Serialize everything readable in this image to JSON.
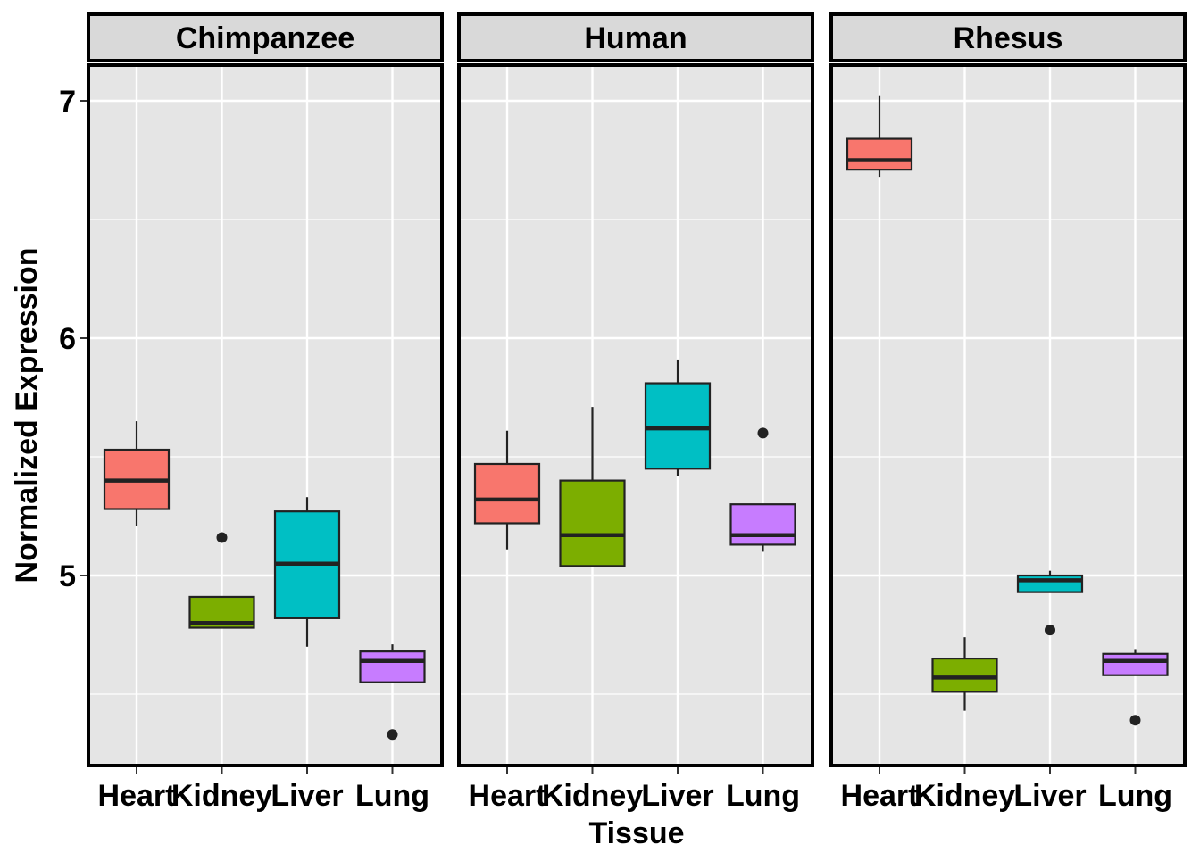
{
  "chart_data": {
    "type": "boxplot",
    "xlabel": "Tissue",
    "ylabel": "Normalized Expression",
    "ylim": [
      4.2,
      7.2
    ],
    "yticks": [
      5,
      6,
      7
    ],
    "categories": [
      "Heart",
      "Kidney",
      "Liver",
      "Lung"
    ],
    "grid": true,
    "legend": "none",
    "colors": {
      "Heart": "#F8766D",
      "Kidney": "#7CAE00",
      "Liver": "#00BFC4",
      "Lung": "#C77CFF"
    },
    "panel_background": "#E5E5E5",
    "strip_background": "#D9D9D9",
    "facets": [
      {
        "label": "Chimpanzee",
        "boxes": [
          {
            "category": "Heart",
            "whisker_low": 5.21,
            "q1": 5.28,
            "median": 5.4,
            "q3": 5.53,
            "whisker_high": 5.65,
            "outliers": []
          },
          {
            "category": "Kidney",
            "whisker_low": 4.78,
            "q1": 4.78,
            "median": 4.8,
            "q3": 4.91,
            "whisker_high": 4.91,
            "outliers": [
              5.16
            ]
          },
          {
            "category": "Liver",
            "whisker_low": 4.7,
            "q1": 4.82,
            "median": 5.05,
            "q3": 5.27,
            "whisker_high": 5.33,
            "outliers": []
          },
          {
            "category": "Lung",
            "whisker_low": 4.55,
            "q1": 4.55,
            "median": 4.64,
            "q3": 4.68,
            "whisker_high": 4.71,
            "outliers": [
              4.33
            ]
          }
        ]
      },
      {
        "label": "Human",
        "boxes": [
          {
            "category": "Heart",
            "whisker_low": 5.11,
            "q1": 5.22,
            "median": 5.32,
            "q3": 5.47,
            "whisker_high": 5.61,
            "outliers": []
          },
          {
            "category": "Kidney",
            "whisker_low": 5.04,
            "q1": 5.04,
            "median": 5.17,
            "q3": 5.4,
            "whisker_high": 5.71,
            "outliers": []
          },
          {
            "category": "Liver",
            "whisker_low": 5.42,
            "q1": 5.45,
            "median": 5.62,
            "q3": 5.81,
            "whisker_high": 5.91,
            "outliers": []
          },
          {
            "category": "Lung",
            "whisker_low": 5.1,
            "q1": 5.13,
            "median": 5.17,
            "q3": 5.3,
            "whisker_high": 5.3,
            "outliers": [
              5.6
            ]
          }
        ]
      },
      {
        "label": "Rhesus",
        "boxes": [
          {
            "category": "Heart",
            "whisker_low": 6.68,
            "q1": 6.71,
            "median": 6.75,
            "q3": 6.84,
            "whisker_high": 7.02,
            "outliers": []
          },
          {
            "category": "Kidney",
            "whisker_low": 4.43,
            "q1": 4.51,
            "median": 4.57,
            "q3": 4.65,
            "whisker_high": 4.74,
            "outliers": []
          },
          {
            "category": "Liver",
            "whisker_low": 4.93,
            "q1": 4.93,
            "median": 4.98,
            "q3": 5.0,
            "whisker_high": 5.02,
            "outliers": [
              4.77
            ]
          },
          {
            "category": "Lung",
            "whisker_low": 4.58,
            "q1": 4.58,
            "median": 4.64,
            "q3": 4.67,
            "whisker_high": 4.69,
            "outliers": [
              4.39
            ]
          }
        ]
      }
    ]
  }
}
